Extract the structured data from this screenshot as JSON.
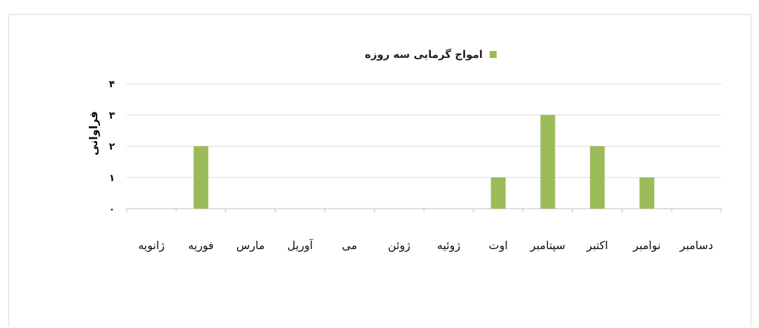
{
  "chart_data": {
    "type": "bar",
    "categories": [
      "ژانویه",
      "فوریه",
      "مارس",
      "آوریل",
      "می",
      "ژوئن",
      "ژوئیه",
      "اوت",
      "سپتامبر",
      "اکتبر",
      "نوامبر",
      "دسامبر"
    ],
    "series": [
      {
        "name": "امواج گرمایی سه روزه",
        "values": [
          0,
          2,
          0,
          0,
          0,
          0,
          0,
          1,
          3,
          2,
          1,
          0
        ],
        "color": "#9bbb59"
      }
    ],
    "ylabel": "فراوانی",
    "yticks": [
      "۰",
      "۱",
      "۲",
      "۳",
      "۴"
    ],
    "ylim": [
      0,
      4
    ],
    "grid": true,
    "legend": "top-center"
  }
}
